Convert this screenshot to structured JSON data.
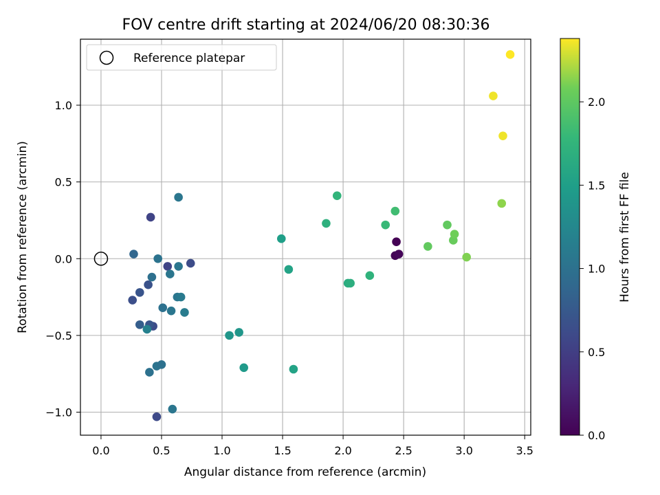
{
  "chart_data": {
    "type": "scatter",
    "title": "FOV centre drift starting at 2024/06/20 08:30:36",
    "xlabel": "Angular distance from reference (arcmin)",
    "ylabel": "Rotation from reference (arcmin)",
    "xlim": [
      -0.17,
      3.55
    ],
    "ylim": [
      -1.15,
      1.43
    ],
    "xticks": [
      0.0,
      0.5,
      1.0,
      1.5,
      2.0,
      2.5,
      3.0,
      3.5
    ],
    "xtick_labels": [
      "0.0",
      "0.5",
      "1.0",
      "1.5",
      "2.0",
      "2.5",
      "3.0",
      "3.5"
    ],
    "yticks": [
      -1.0,
      -0.5,
      0.0,
      0.5,
      1.0
    ],
    "ytick_labels": [
      "−1.0",
      "−0.5",
      "0.0",
      "0.5",
      "1.0"
    ],
    "grid": true,
    "legend": {
      "position": "top-left",
      "label": "Reference platepar"
    },
    "reference_point": {
      "x": 0.0,
      "y": 0.0
    },
    "colorbar": {
      "label": "Hours from first FF file",
      "colormap": "viridis",
      "range": [
        0.0,
        2.38
      ],
      "ticks": [
        0.0,
        0.5,
        1.0,
        1.5,
        2.0
      ],
      "tick_labels": [
        "0.0",
        "0.5",
        "1.0",
        "1.5",
        "2.0"
      ]
    },
    "points": [
      {
        "x": 2.44,
        "y": 0.11,
        "h": 0.0
      },
      {
        "x": 2.43,
        "y": 0.02,
        "h": 0.02
      },
      {
        "x": 2.46,
        "y": 0.03,
        "h": 0.04
      },
      {
        "x": 0.41,
        "y": 0.27,
        "h": 0.55
      },
      {
        "x": 0.46,
        "y": -1.03,
        "h": 0.6
      },
      {
        "x": 0.26,
        "y": -0.27,
        "h": 0.65
      },
      {
        "x": 0.32,
        "y": -0.22,
        "h": 0.7
      },
      {
        "x": 0.55,
        "y": -0.05,
        "h": 0.55
      },
      {
        "x": 0.74,
        "y": -0.03,
        "h": 0.62
      },
      {
        "x": 0.39,
        "y": -0.17,
        "h": 0.68
      },
      {
        "x": 0.43,
        "y": -0.44,
        "h": 0.62
      },
      {
        "x": 0.4,
        "y": -0.43,
        "h": 0.72
      },
      {
        "x": 0.32,
        "y": -0.43,
        "h": 0.8
      },
      {
        "x": 0.27,
        "y": 0.03,
        "h": 0.88
      },
      {
        "x": 0.42,
        "y": -0.12,
        "h": 0.98
      },
      {
        "x": 0.47,
        "y": 0.0,
        "h": 1.02
      },
      {
        "x": 0.57,
        "y": -0.1,
        "h": 1.05
      },
      {
        "x": 0.64,
        "y": -0.05,
        "h": 1.05
      },
      {
        "x": 0.64,
        "y": 0.4,
        "h": 1.05
      },
      {
        "x": 0.51,
        "y": -0.32,
        "h": 1.0
      },
      {
        "x": 0.58,
        "y": -0.34,
        "h": 1.05
      },
      {
        "x": 0.63,
        "y": -0.25,
        "h": 1.05
      },
      {
        "x": 0.66,
        "y": -0.25,
        "h": 1.1
      },
      {
        "x": 0.69,
        "y": -0.35,
        "h": 1.12
      },
      {
        "x": 0.4,
        "y": -0.74,
        "h": 1.0
      },
      {
        "x": 0.46,
        "y": -0.7,
        "h": 1.02
      },
      {
        "x": 0.5,
        "y": -0.69,
        "h": 1.0
      },
      {
        "x": 0.59,
        "y": -0.98,
        "h": 1.05
      },
      {
        "x": 0.38,
        "y": -0.46,
        "h": 1.18
      },
      {
        "x": 1.06,
        "y": -0.5,
        "h": 1.4
      },
      {
        "x": 1.14,
        "y": -0.48,
        "h": 1.4
      },
      {
        "x": 1.18,
        "y": -0.71,
        "h": 1.45
      },
      {
        "x": 1.49,
        "y": 0.13,
        "h": 1.5
      },
      {
        "x": 1.55,
        "y": -0.07,
        "h": 1.55
      },
      {
        "x": 1.59,
        "y": -0.72,
        "h": 1.55
      },
      {
        "x": 1.86,
        "y": 0.23,
        "h": 1.7
      },
      {
        "x": 1.95,
        "y": 0.41,
        "h": 1.75
      },
      {
        "x": 2.04,
        "y": -0.16,
        "h": 1.65
      },
      {
        "x": 2.06,
        "y": -0.16,
        "h": 1.68
      },
      {
        "x": 2.22,
        "y": -0.11,
        "h": 1.72
      },
      {
        "x": 2.35,
        "y": 0.22,
        "h": 1.8
      },
      {
        "x": 2.43,
        "y": 0.31,
        "h": 1.85
      },
      {
        "x": 2.7,
        "y": 0.08,
        "h": 2.02
      },
      {
        "x": 2.86,
        "y": 0.22,
        "h": 2.02
      },
      {
        "x": 2.91,
        "y": 0.12,
        "h": 2.05
      },
      {
        "x": 2.92,
        "y": 0.16,
        "h": 2.08
      },
      {
        "x": 3.02,
        "y": 0.01,
        "h": 2.12
      },
      {
        "x": 3.31,
        "y": 0.36,
        "h": 2.15
      },
      {
        "x": 3.24,
        "y": 1.06,
        "h": 2.35
      },
      {
        "x": 3.32,
        "y": 0.8,
        "h": 2.35
      },
      {
        "x": 3.38,
        "y": 1.33,
        "h": 2.38
      }
    ]
  }
}
